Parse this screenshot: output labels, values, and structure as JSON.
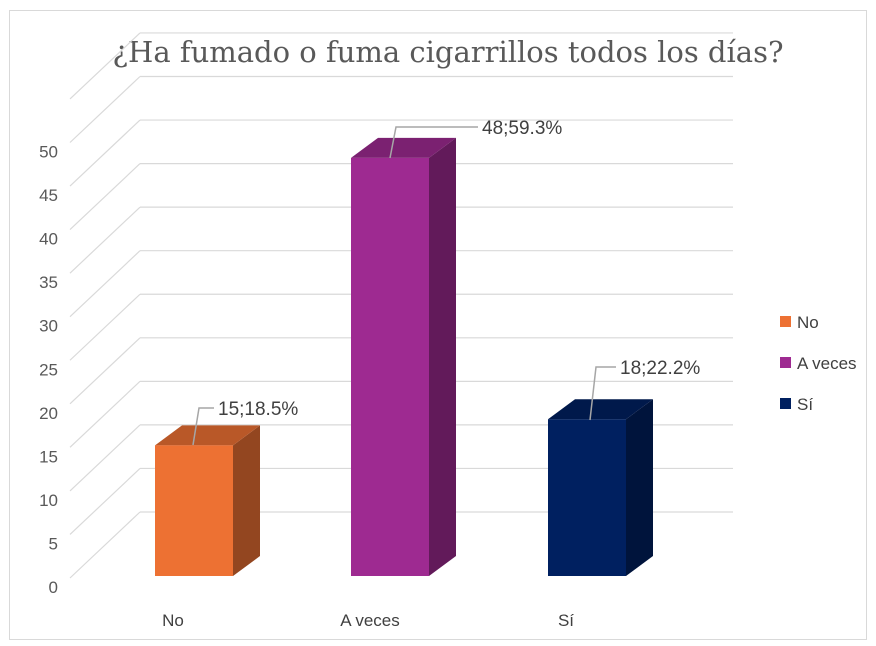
{
  "chart_data": {
    "type": "bar",
    "title": "¿Ha fumado o fuma cigarrillos todos los días?",
    "xlabel": "",
    "ylabel": "",
    "categories": [
      "No",
      "A veces",
      "Sí"
    ],
    "values": [
      15,
      48,
      18
    ],
    "data_labels": [
      "15;18.5%",
      "48;59.3%",
      "18;22.2%"
    ],
    "ylim": [
      0,
      50
    ],
    "yticks": [
      0,
      5,
      10,
      15,
      20,
      25,
      30,
      35,
      40,
      45,
      50
    ],
    "colors": [
      "#ED7133",
      "#9E2A91",
      "#002060"
    ],
    "grid": true,
    "three_d": true,
    "legend": {
      "position": "right",
      "entries": [
        "No",
        "A veces",
        "Sí"
      ]
    }
  }
}
